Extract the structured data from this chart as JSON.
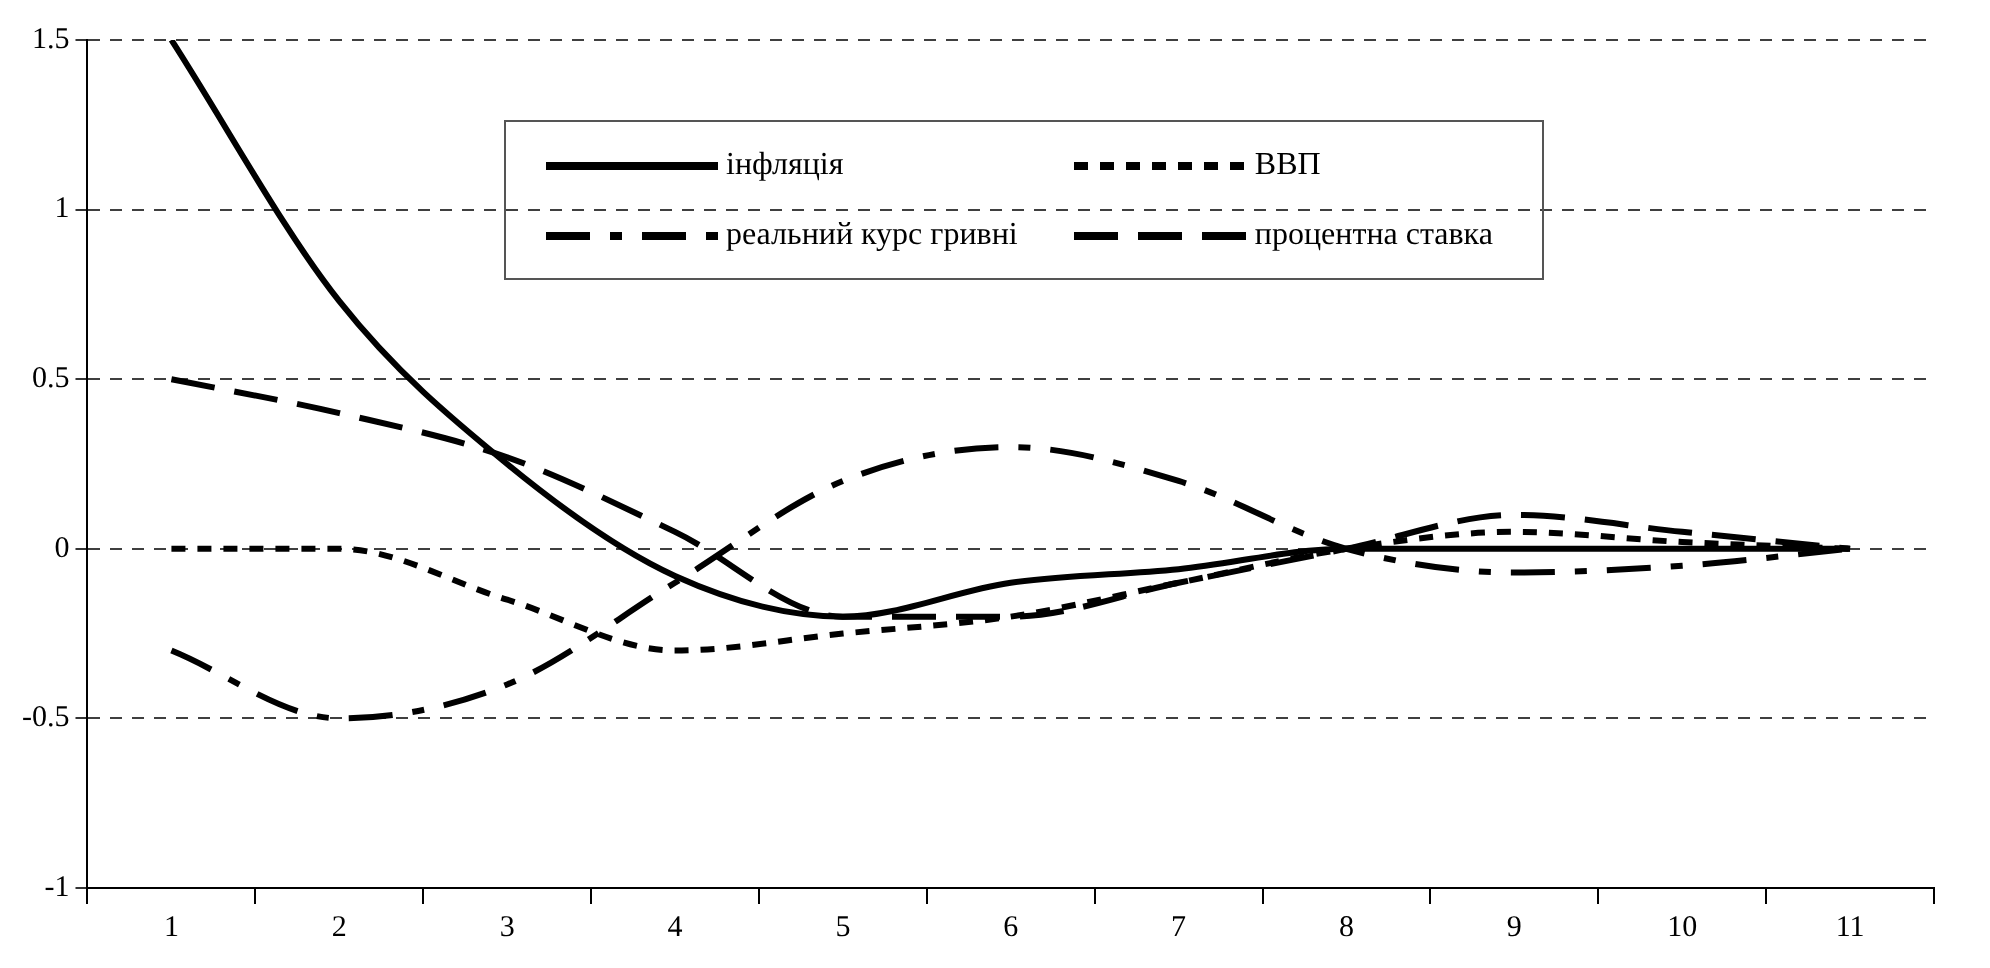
{
  "chart_data": {
    "type": "line",
    "categories": [
      "1",
      "2",
      "3",
      "4",
      "5",
      "6",
      "7",
      "8",
      "9",
      "10",
      "11"
    ],
    "series": [
      {
        "name": "інфляція",
        "color": "#000000",
        "line_style": "solid",
        "values": [
          1.5,
          0.73,
          0.25,
          -0.08,
          -0.2,
          -0.1,
          -0.06,
          0,
          0,
          0,
          0
        ]
      },
      {
        "name": "ВВП",
        "color": "#000000",
        "line_style": "dotted",
        "values": [
          0,
          0,
          -0.15,
          -0.3,
          -0.25,
          -0.2,
          -0.1,
          0,
          0.05,
          0.02,
          0
        ]
      },
      {
        "name": "реальний курс гривні",
        "color": "#000000",
        "line_style": "dashdot",
        "values": [
          -0.3,
          -0.5,
          -0.4,
          -0.1,
          0.2,
          0.3,
          0.2,
          0,
          -0.07,
          -0.05,
          0
        ]
      },
      {
        "name": "процентна ставка",
        "color": "#000000",
        "line_style": "dashed",
        "values": [
          0.5,
          0.4,
          0.27,
          0.05,
          -0.2,
          -0.2,
          -0.1,
          0,
          0.1,
          0.05,
          0
        ]
      }
    ],
    "ylim": [
      -1,
      1.5
    ],
    "yticks": [
      -1,
      -0.5,
      0,
      0.5,
      1,
      1.5
    ],
    "grid": "y",
    "legend": "top right",
    "marker": "none"
  }
}
